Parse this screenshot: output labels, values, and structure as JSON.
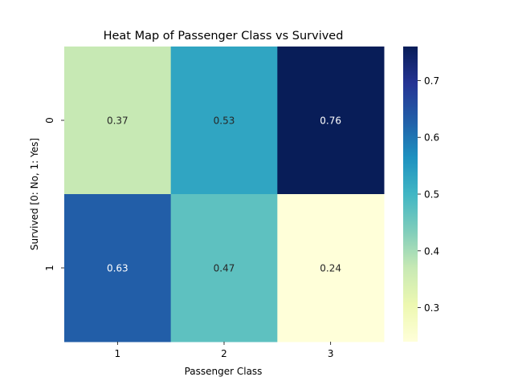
{
  "chart_data": {
    "type": "heatmap",
    "title": "Heat Map of Passenger Class vs Survived",
    "xlabel": "Passenger Class",
    "ylabel": "Survived [0: No, 1: Yes]",
    "x_categories": [
      "1",
      "2",
      "3"
    ],
    "y_categories": [
      "0",
      "1"
    ],
    "values": [
      [
        0.37,
        0.53,
        0.76
      ],
      [
        0.63,
        0.47,
        0.24
      ]
    ],
    "annotations": [
      [
        "0.37",
        "0.53",
        "0.76"
      ],
      [
        "0.63",
        "0.47",
        "0.24"
      ]
    ],
    "colormap": "YlGnBu",
    "colorbar": {
      "range": [
        0.24,
        0.76
      ],
      "ticks": [
        0.3,
        0.4,
        0.5,
        0.6,
        0.7
      ],
      "tick_labels": [
        "0.3",
        "0.4",
        "0.5",
        "0.6",
        "0.7"
      ]
    },
    "grid": false
  }
}
